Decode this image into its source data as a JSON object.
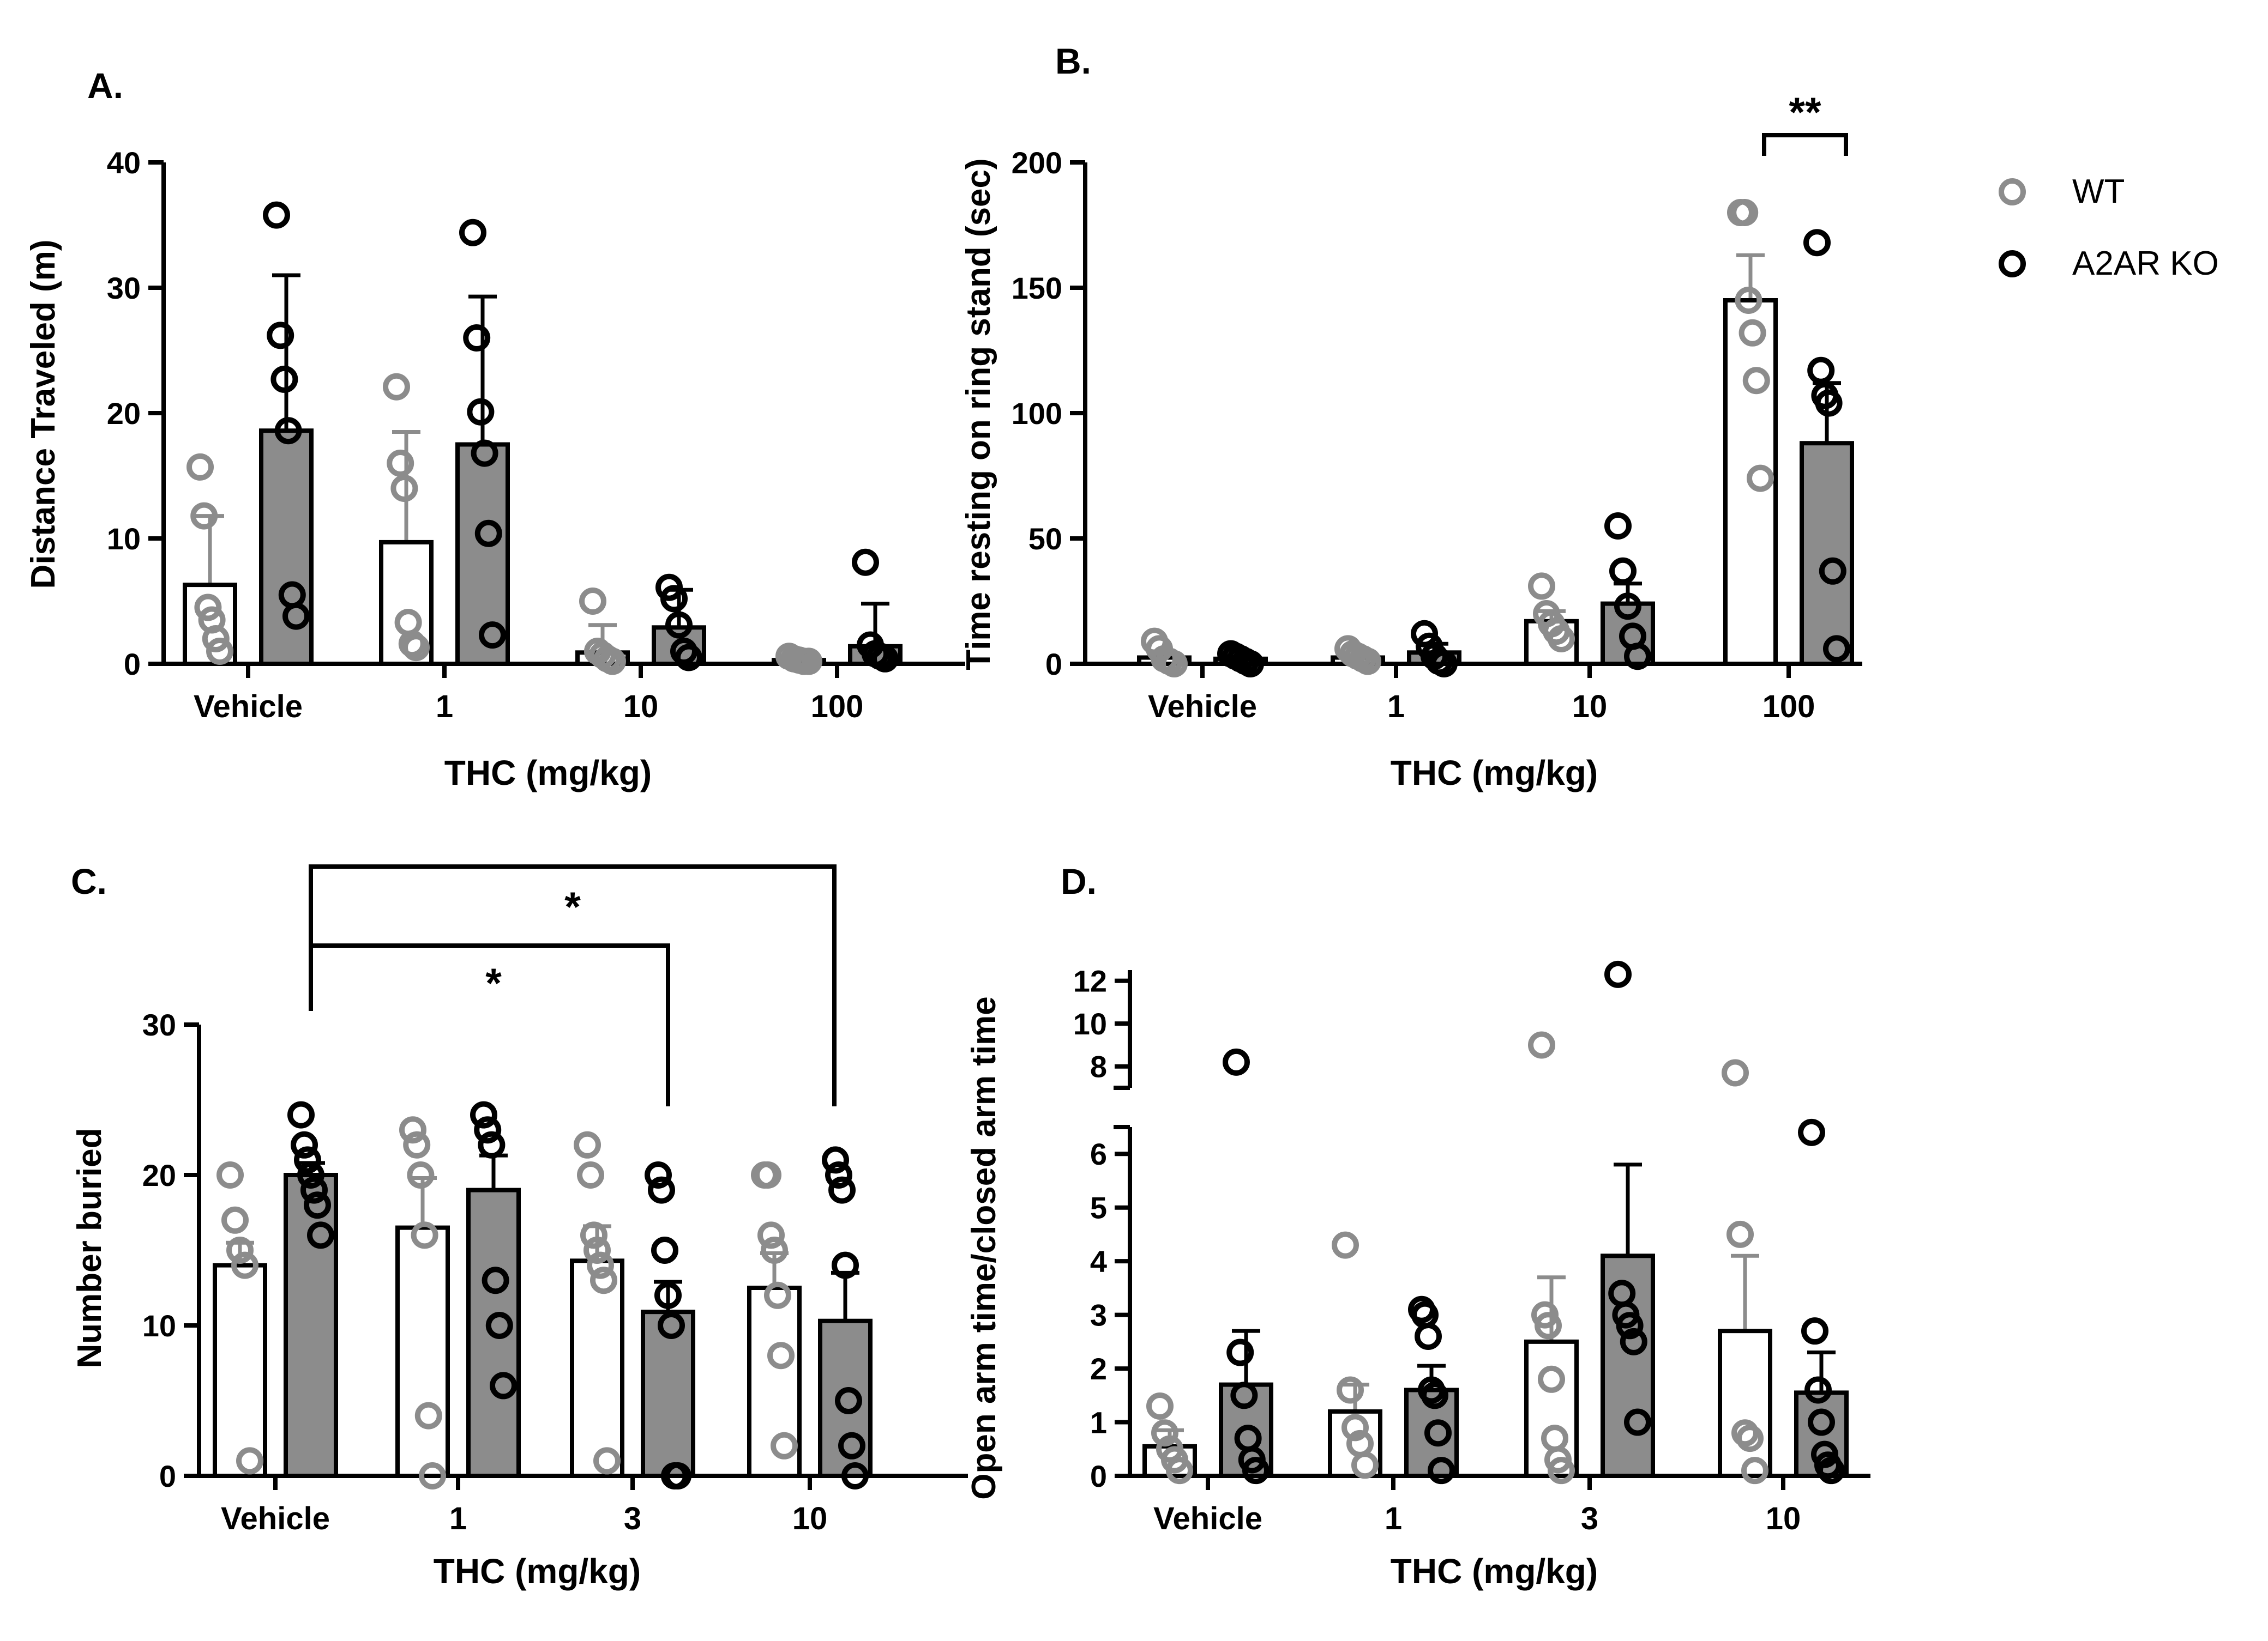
{
  "legend": [
    {
      "name": "WT",
      "color": "#8c8c8c"
    },
    {
      "name": "A2AR KO",
      "color": "#000000"
    }
  ],
  "colors": {
    "wt": "#8c8c8c",
    "ko": "#000000",
    "ko_bar_fill": "#8c8c8c",
    "wt_bar_fill": "#ffffff"
  },
  "chart_data": [
    {
      "panel": "A.",
      "type": "bar",
      "xlabel": "THC (mg/kg)",
      "ylabel": "Distance Traveled (m)",
      "ylim": [
        0,
        40
      ],
      "yticks": [
        0,
        10,
        20,
        30,
        40
      ],
      "ytick_labels": [
        "0",
        "10",
        "20",
        "30",
        "40"
      ],
      "categories": [
        "Vehicle",
        "1",
        "10",
        "100"
      ],
      "series": [
        {
          "name": "WT",
          "values": [
            6.3,
            9.7,
            0.9,
            0.3
          ],
          "errors": [
            5.5,
            8.8,
            2.2,
            0.4
          ],
          "points": [
            [
              15.7,
              11.8,
              4.5,
              3.5,
              2.0,
              1.0
            ],
            [
              22.1,
              16.0,
              14.0,
              3.3,
              1.6,
              1.3
            ],
            [
              5.0,
              1.0,
              0.7,
              0.4,
              0.2
            ],
            [
              0.6,
              0.4,
              0.3,
              0.2,
              0.2
            ]
          ]
        },
        {
          "name": "A2AR KO",
          "values": [
            18.6,
            17.5,
            2.9,
            1.4
          ],
          "errors": [
            12.4,
            11.8,
            3.0,
            3.4
          ],
          "points": [
            [
              35.8,
              26.2,
              22.7,
              18.6,
              5.5,
              3.8
            ],
            [
              34.4,
              26.0,
              20.1,
              16.8,
              10.4,
              2.3
            ],
            [
              6.1,
              5.2,
              3.1,
              1.0,
              0.5
            ],
            [
              8.1,
              1.5,
              0.8,
              0.6,
              0.4
            ]
          ]
        }
      ]
    },
    {
      "panel": "B.",
      "type": "bar",
      "xlabel": "THC (mg/kg)",
      "ylabel": "Time resting on ring stand (sec)",
      "ylim": [
        0,
        200
      ],
      "yticks": [
        0,
        50,
        100,
        150,
        200
      ],
      "ytick_labels": [
        "0",
        "50",
        "100",
        "150",
        "200"
      ],
      "categories": [
        "Vehicle",
        "1",
        "10",
        "100"
      ],
      "series": [
        {
          "name": "WT",
          "values": [
            2.5,
            2.5,
            17,
            145
          ],
          "errors": [
            1.5,
            1.0,
            4.0,
            18
          ],
          "points": [
            [
              9,
              6,
              2,
              1,
              0
            ],
            [
              6,
              4,
              3,
              2,
              1
            ],
            [
              31,
              20,
              16,
              13,
              10
            ],
            [
              180,
              180,
              145,
              132,
              113,
              74
            ]
          ]
        },
        {
          "name": "A2AR KO",
          "values": [
            2.0,
            4.5,
            24,
            88
          ],
          "errors": [
            0.8,
            3.5,
            8.0,
            24
          ],
          "points": [
            [
              4,
              3,
              2,
              1,
              0
            ],
            [
              12,
              7,
              3,
              1,
              0
            ],
            [
              55,
              37,
              23,
              11,
              3
            ],
            [
              168,
              117,
              107,
              104,
              37,
              6
            ]
          ]
        }
      ],
      "significance": [
        {
          "group": "100",
          "label": "**"
        }
      ]
    },
    {
      "panel": "C.",
      "type": "bar",
      "xlabel": "THC (mg/kg)",
      "ylabel": "Number buried",
      "ylim": [
        0,
        30
      ],
      "yticks": [
        0,
        10,
        20,
        30
      ],
      "ytick_labels": [
        "0",
        "10",
        "20",
        "30"
      ],
      "categories": [
        "Vehicle",
        "1",
        "3",
        "10"
      ],
      "series": [
        {
          "name": "WT",
          "values": [
            14,
            16.5,
            14.3,
            12.5
          ],
          "errors": [
            1.5,
            3.3,
            2.3,
            2.3
          ],
          "points": [
            [
              20,
              17,
              15,
              14,
              1
            ],
            [
              23,
              22,
              20,
              16,
              4,
              0
            ],
            [
              22,
              20,
              16,
              15,
              14,
              13,
              1
            ],
            [
              20,
              20,
              16,
              15,
              12,
              8,
              2
            ]
          ]
        },
        {
          "name": "A2AR KO",
          "values": [
            20,
            19,
            10.9,
            10.3
          ],
          "errors": [
            0.8,
            2.3,
            2.0,
            3.2
          ],
          "points": [
            [
              24,
              22,
              21,
              20,
              19,
              18,
              16
            ],
            [
              24,
              23,
              22,
              13,
              10,
              6
            ],
            [
              20,
              19,
              15,
              12,
              10,
              0,
              0
            ],
            [
              21,
              20,
              19,
              14,
              5,
              2,
              0
            ]
          ]
        }
      ],
      "significance": [
        {
          "from": "Vehicle A2AR KO",
          "to": "3 A2AR KO",
          "label": "*"
        },
        {
          "from": "Vehicle A2AR KO",
          "to": "10 A2AR KO",
          "label": "*"
        }
      ]
    },
    {
      "panel": "D.",
      "type": "bar",
      "xlabel": "THC (mg/kg)",
      "ylabel": "Open arm time/closed arm time",
      "ylim_lower": [
        0,
        6.5
      ],
      "ylim_upper": [
        7,
        12.5
      ],
      "yticks_lower": [
        0,
        1,
        2,
        3,
        4,
        5,
        6
      ],
      "ytick_labels_lower": [
        "0",
        "1",
        "2",
        "3",
        "4",
        "5",
        "6"
      ],
      "yticks_upper": [
        8,
        10,
        12
      ],
      "ytick_labels_upper": [
        "8",
        "10",
        "12"
      ],
      "categories": [
        "Vehicle",
        "1",
        "3",
        "10"
      ],
      "series": [
        {
          "name": "WT",
          "values": [
            0.55,
            1.2,
            2.5,
            2.7
          ],
          "errors": [
            0.3,
            0.5,
            1.2,
            1.4
          ],
          "points": [
            [
              1.3,
              0.8,
              0.5,
              0.3,
              0.1
            ],
            [
              4.3,
              1.6,
              0.9,
              0.6,
              0.2
            ],
            [
              9.0,
              3.0,
              2.8,
              1.8,
              0.7,
              0.3,
              0.1
            ],
            [
              7.7,
              4.5,
              0.8,
              0.7,
              0.1
            ]
          ]
        },
        {
          "name": "A2AR KO",
          "values": [
            1.7,
            1.6,
            4.1,
            1.55
          ],
          "errors": [
            1.0,
            0.45,
            1.7,
            0.75
          ],
          "points": [
            [
              8.2,
              2.3,
              1.5,
              0.7,
              0.3,
              0.1
            ],
            [
              3.1,
              3.0,
              2.6,
              1.6,
              1.5,
              0.8,
              0.1
            ],
            [
              12.3,
              3.4,
              3.0,
              2.8,
              2.5,
              1.0
            ],
            [
              6.4,
              2.7,
              1.6,
              1.0,
              0.4,
              0.2,
              0.1
            ]
          ]
        }
      ]
    }
  ]
}
